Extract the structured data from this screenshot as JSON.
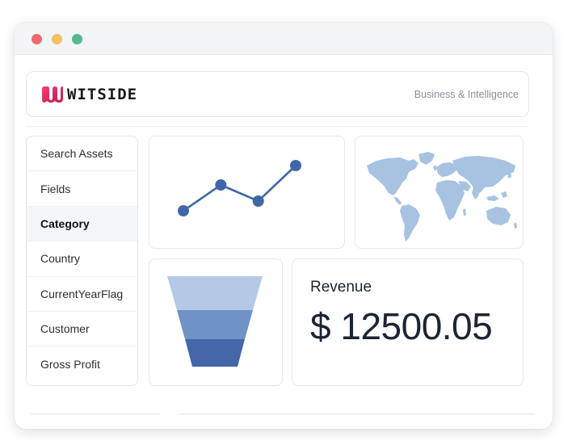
{
  "brand": {
    "name": "WITSIDE",
    "tagline": "Business & Intelligence",
    "accent": "#e0245e"
  },
  "sidebar": {
    "items": [
      {
        "label": "Search Assets",
        "active": false
      },
      {
        "label": "Fields",
        "active": false
      },
      {
        "label": "Category",
        "active": true
      },
      {
        "label": "Country",
        "active": false
      },
      {
        "label": "CurrentYearFlag",
        "active": false
      },
      {
        "label": "Customer",
        "active": false
      },
      {
        "label": "Gross Profit",
        "active": false
      }
    ]
  },
  "revenue": {
    "label": "Revenue",
    "value": "$ 12500.05"
  },
  "colors": {
    "chart_line": "#3f67a8",
    "funnel_top": "#b5c9e6",
    "funnel_mid": "#6f92c7",
    "funnel_bottom": "#4367a8",
    "map_land": "#a8c2e2"
  },
  "chart_data": {
    "type": "line",
    "x": [
      1,
      2,
      3,
      4
    ],
    "values": [
      1,
      2.6,
      1.6,
      3.8
    ],
    "title": "",
    "xlabel": "",
    "ylabel": "",
    "ylim": [
      0,
      4.5
    ]
  }
}
